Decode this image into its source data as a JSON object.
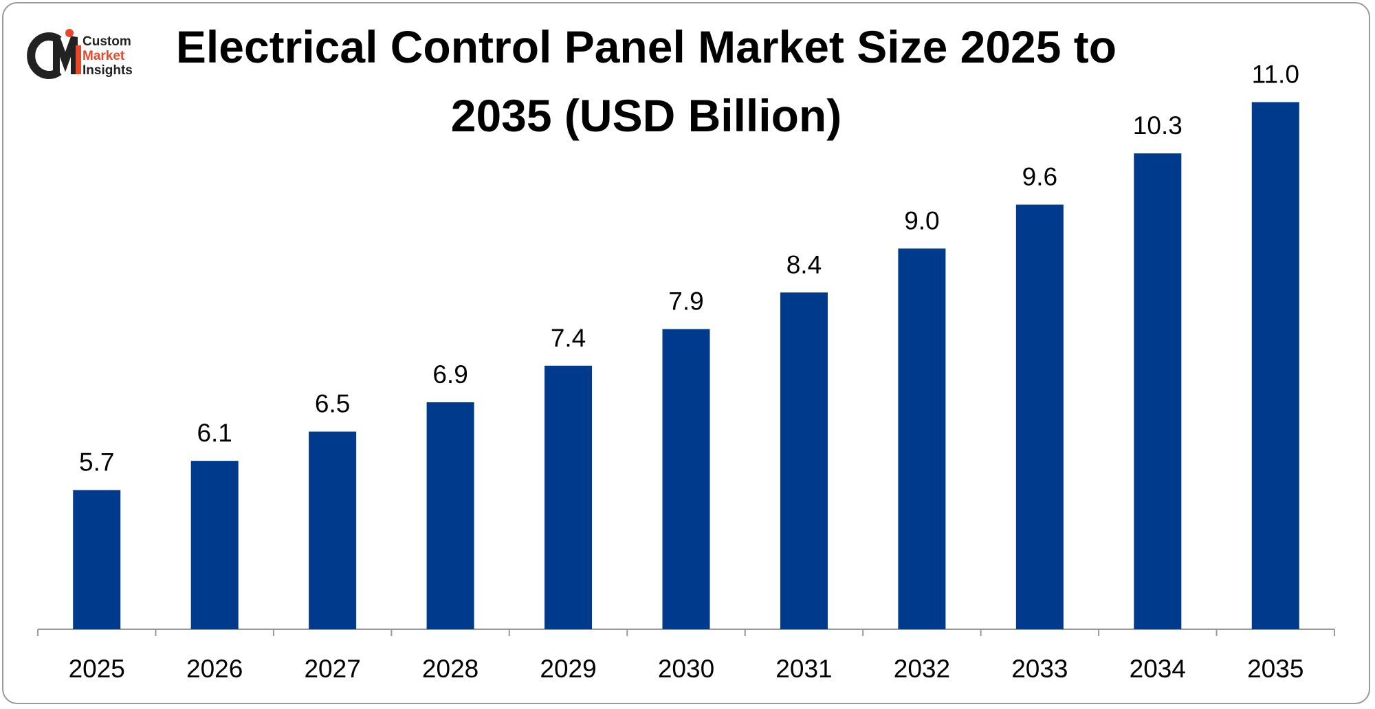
{
  "logo": {
    "lines": [
      "Custom",
      "Market",
      "Insights"
    ]
  },
  "chart_data": {
    "type": "bar",
    "title": "Electrical Control Panel Market Size 2025 to 2035 (USD Billion)",
    "categories": [
      "2025",
      "2026",
      "2027",
      "2028",
      "2029",
      "2030",
      "2031",
      "2032",
      "2033",
      "2034",
      "2035"
    ],
    "values": [
      5.7,
      6.1,
      6.5,
      6.9,
      7.4,
      7.9,
      8.4,
      9.0,
      9.6,
      10.3,
      11.0
    ],
    "value_labels": [
      "5.7",
      "6.1",
      "6.5",
      "6.9",
      "7.4",
      "7.9",
      "8.4",
      "9.0",
      "9.6",
      "10.3",
      "11.0"
    ],
    "color": "#003a8c",
    "ylim": [
      3.8,
      11.7
    ]
  }
}
